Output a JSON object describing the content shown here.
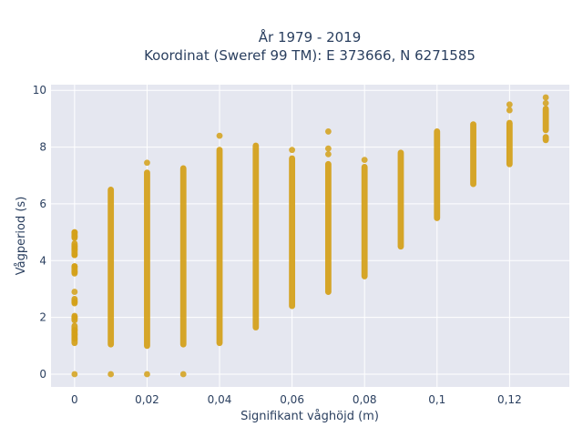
{
  "chart_data": {
    "type": "scatter",
    "title": [
      "År 1979 - 2019",
      "Koordinat (Sweref 99 TM): E 373666, N 6271585"
    ],
    "xlabel": "Signifikant våghöjd (m)",
    "ylabel": "Vågperiod (s)",
    "xlim": [
      -0.0065,
      0.1365
    ],
    "ylim": [
      -0.45,
      10.2
    ],
    "x_ticks": [
      0,
      0.02,
      0.04,
      0.06,
      0.08,
      0.1,
      0.12
    ],
    "x_tick_labels": [
      "0",
      "0,02",
      "0,04",
      "0,06",
      "0,08",
      "0,1",
      "0,12"
    ],
    "y_ticks": [
      0,
      2,
      4,
      6,
      8,
      10
    ],
    "y_tick_labels": [
      "0",
      "2",
      "4",
      "6",
      "8",
      "10"
    ],
    "grid": true,
    "marker_color": "#d4a017",
    "plot_bg": "#e5e7f0",
    "grid_color": "#ffffff",
    "columns": [
      {
        "x": 0,
        "segments": [
          [
            1.1,
            1.7
          ],
          [
            1.9,
            2.05
          ],
          [
            2.5,
            2.65
          ],
          [
            3.55,
            3.8
          ],
          [
            4.2,
            4.6
          ],
          [
            4.8,
            5.0
          ]
        ],
        "points": [
          0,
          2.9,
          3.6,
          3.8,
          1.25,
          1.4,
          1.55,
          2.0,
          2.55,
          4.2,
          4.4,
          4.5,
          4.85,
          5.0
        ]
      },
      {
        "x": 0.01,
        "segments": [
          [
            1.05,
            6.5
          ]
        ],
        "points": [
          0
        ]
      },
      {
        "x": 0.02,
        "segments": [
          [
            1.0,
            7.1
          ]
        ],
        "points": [
          0,
          7.45
        ]
      },
      {
        "x": 0.03,
        "segments": [
          [
            1.05,
            7.25
          ]
        ],
        "points": [
          0
        ]
      },
      {
        "x": 0.04,
        "segments": [
          [
            1.1,
            7.9
          ]
        ],
        "points": [
          8.4
        ]
      },
      {
        "x": 0.05,
        "segments": [
          [
            1.65,
            8.05
          ]
        ],
        "points": []
      },
      {
        "x": 0.06,
        "segments": [
          [
            2.4,
            7.6
          ]
        ],
        "points": [
          7.9
        ]
      },
      {
        "x": 0.07,
        "segments": [
          [
            2.9,
            7.4
          ]
        ],
        "points": [
          7.75,
          7.95,
          8.55
        ]
      },
      {
        "x": 0.08,
        "segments": [
          [
            3.45,
            7.3
          ]
        ],
        "points": [
          7.55
        ]
      },
      {
        "x": 0.09,
        "segments": [
          [
            4.5,
            7.8
          ]
        ],
        "points": []
      },
      {
        "x": 0.1,
        "segments": [
          [
            5.5,
            8.55
          ]
        ],
        "points": []
      },
      {
        "x": 0.11,
        "segments": [
          [
            6.7,
            8.8
          ]
        ],
        "points": []
      },
      {
        "x": 0.12,
        "segments": [
          [
            7.4,
            8.85
          ]
        ],
        "points": [
          9.3,
          9.5
        ]
      },
      {
        "x": 0.13,
        "segments": [
          [
            8.25,
            8.35
          ],
          [
            8.6,
            9.35
          ]
        ],
        "points": [
          9.55,
          9.75
        ]
      }
    ]
  }
}
